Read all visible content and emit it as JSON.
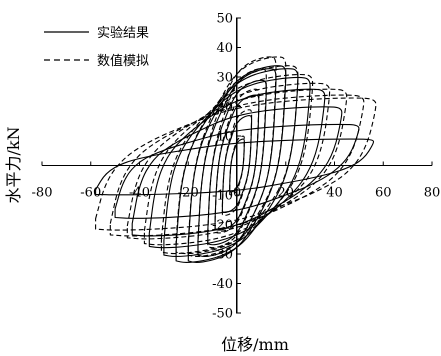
{
  "chart_data": {
    "type": "line",
    "title": "",
    "xlabel": "位移/mm",
    "ylabel": "水平力/kN",
    "xlim": [
      -80,
      80
    ],
    "ylim": [
      -50,
      50
    ],
    "x_ticks": [
      -80,
      -60,
      -40,
      -20,
      0,
      20,
      40,
      60,
      80
    ],
    "y_ticks": [
      -50,
      -40,
      -30,
      -20,
      -10,
      0,
      10,
      20,
      30,
      40,
      50
    ],
    "x_tick_labels": [
      "-80",
      "-60",
      "-40",
      "-20",
      "0",
      "20",
      "40",
      "60",
      "80"
    ],
    "y_tick_labels": [
      "-50",
      "-40",
      "-30",
      "-20",
      "-10",
      "",
      "10",
      "20",
      "30",
      "40",
      "50"
    ],
    "legend_position": "top-left",
    "grid": false,
    "series": [
      {
        "name": "实验结果",
        "style": "solid",
        "color": "#000000",
        "loops": [
          {
            "dmax": 3,
            "fmax": 9,
            "dmin": -3,
            "fmin": -9
          },
          {
            "dmax": 6,
            "fmax": 17,
            "dmin": -6,
            "fmin": -16
          },
          {
            "dmax": 9,
            "fmax": 24,
            "dmin": -9,
            "fmin": -22
          },
          {
            "dmax": 12,
            "fmax": 29,
            "dmin": -12,
            "fmin": -27
          },
          {
            "dmax": 16,
            "fmax": 33,
            "dmin": -16,
            "fmin": -31
          },
          {
            "dmax": 20,
            "fmax": 34,
            "dmin": -20,
            "fmin": -33
          },
          {
            "dmax": 25,
            "fmax": 33,
            "dmin": -25,
            "fmin": -33
          },
          {
            "dmax": 30,
            "fmax": 30,
            "dmin": -30,
            "fmin": -31
          },
          {
            "dmax": 36,
            "fmax": 26,
            "dmin": -36,
            "fmin": -28
          },
          {
            "dmax": 43,
            "fmax": 20,
            "dmin": -43,
            "fmin": -24
          },
          {
            "dmax": 50,
            "fmax": 14,
            "dmin": -50,
            "fmin": -18
          },
          {
            "dmax": 56,
            "fmax": 9,
            "dmin": -58,
            "fmin": -10
          }
        ]
      },
      {
        "name": "数值模拟",
        "style": "dashed",
        "color": "#000000",
        "loops": [
          {
            "dmax": 3,
            "fmax": 10,
            "dmin": -3,
            "fmin": -10
          },
          {
            "dmax": 6,
            "fmax": 19,
            "dmin": -6,
            "fmin": -17
          },
          {
            "dmax": 9,
            "fmax": 26,
            "dmin": -9,
            "fmin": -23
          },
          {
            "dmax": 12,
            "fmax": 33,
            "dmin": -12,
            "fmin": -28
          },
          {
            "dmax": 16,
            "fmax": 37,
            "dmin": -16,
            "fmin": -31
          },
          {
            "dmax": 20,
            "fmax": 37,
            "dmin": -20,
            "fmin": -31
          },
          {
            "dmax": 25,
            "fmax": 34,
            "dmin": -25,
            "fmin": -30
          },
          {
            "dmax": 31,
            "fmax": 31,
            "dmin": -31,
            "fmin": -30
          },
          {
            "dmax": 38,
            "fmax": 28,
            "dmin": -38,
            "fmin": -27
          },
          {
            "dmax": 45,
            "fmax": 26,
            "dmin": -45,
            "fmin": -25
          },
          {
            "dmax": 52,
            "fmax": 24,
            "dmin": -52,
            "fmin": -24
          },
          {
            "dmax": 57,
            "fmax": 23,
            "dmin": -58,
            "fmin": -22
          }
        ]
      }
    ]
  }
}
